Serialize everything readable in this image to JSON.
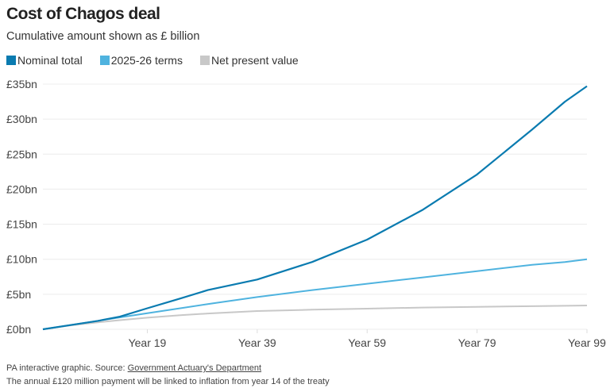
{
  "chart_data": {
    "type": "line",
    "title": "Cost of Chagos deal",
    "subtitle": "Cumulative amount shown as £ billion",
    "x_tick_labels": [
      "Year 19",
      "Year 39",
      "Year 59",
      "Year 79",
      "Year 99"
    ],
    "x_ticks": [
      19,
      39,
      59,
      79,
      99
    ],
    "y_tick_labels": [
      "£0bn",
      "£5bn",
      "£10bn",
      "£15bn",
      "£20bn",
      "£25bn",
      "£30bn",
      "£35bn"
    ],
    "y_ticks": [
      0,
      5,
      10,
      15,
      20,
      25,
      30,
      35
    ],
    "xlim": [
      0,
      99
    ],
    "ylim": [
      0,
      35
    ],
    "grid": true,
    "legend_placement": "top-left",
    "x": [
      0,
      5,
      10,
      14,
      19,
      25,
      30,
      39,
      49,
      59,
      69,
      79,
      89,
      95,
      99
    ],
    "series": [
      {
        "name": "Nominal total",
        "color": "#0a7bb0",
        "values": [
          0,
          0.6,
          1.2,
          1.8,
          3.0,
          4.4,
          5.6,
          7.1,
          9.6,
          12.8,
          17.0,
          22.1,
          28.5,
          32.5,
          34.7
        ]
      },
      {
        "name": "2025-26 terms",
        "color": "#4fb3df",
        "values": [
          0,
          0.6,
          1.2,
          1.7,
          2.3,
          3.0,
          3.6,
          4.6,
          5.6,
          6.5,
          7.4,
          8.3,
          9.2,
          9.6,
          10.0
        ]
      },
      {
        "name": "Net present value",
        "color": "#c8c8c8",
        "values": [
          0,
          0.55,
          1.0,
          1.3,
          1.65,
          2.0,
          2.25,
          2.6,
          2.8,
          2.95,
          3.1,
          3.2,
          3.3,
          3.35,
          3.4
        ]
      }
    ]
  },
  "footer": {
    "source_prefix": "PA interactive graphic. Source: ",
    "source_link": "Government Actuary's Department",
    "note": "The annual £120 million payment will be linked to inflation from year 14 of the treaty"
  }
}
